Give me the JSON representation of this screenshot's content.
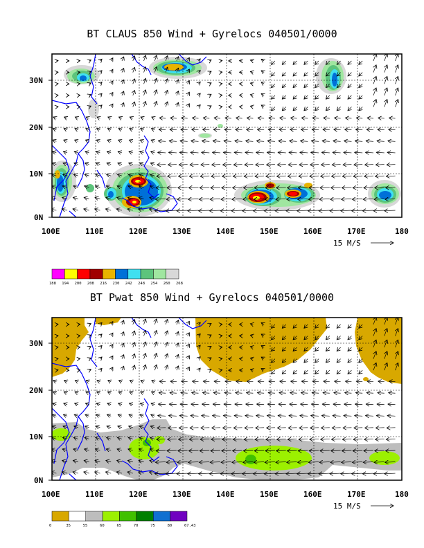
{
  "panel1": {
    "title": "BT CLAUS 850 Wind + Gyrelocs 040501/0000",
    "lat_labels": [
      "30N",
      "20N",
      "10N",
      "0N"
    ],
    "lon_labels": [
      "100E",
      "110E",
      "120E",
      "130E",
      "140E",
      "150E",
      "160E",
      "170E",
      "180"
    ],
    "scale_label": "15 M/S",
    "colorbar_colors": [
      "#ff00ff",
      "#ffff00",
      "#ff0000",
      "#a00000",
      "#e8b400",
      "#0070d8",
      "#40e0f0",
      "#5cc47c",
      "#a0e6a0",
      "#d8d8d8"
    ],
    "colorbar_labels": [
      "188",
      "194",
      "200",
      "208",
      "216",
      "230",
      "242",
      "248",
      "254",
      "260",
      "268"
    ]
  },
  "panel2": {
    "title": "BT Pwat 850 Wind + Gyrelocs 040501/0000",
    "lat_labels": [
      "30N",
      "20N",
      "10N",
      "0N"
    ],
    "lon_labels": [
      "100E",
      "110E",
      "120E",
      "130E",
      "140E",
      "150E",
      "160E",
      "170E",
      "180"
    ],
    "scale_label": "15 M/S",
    "colorbar_colors": [
      "#d8a800",
      "#ffffff",
      "#bdbdbd",
      "#9cf000",
      "#40c000",
      "#008000",
      "#1070d0",
      "#7000c0"
    ],
    "colorbar_labels": [
      "0",
      "35",
      "55",
      "60",
      "65",
      "70",
      "75",
      "80",
      "67.43"
    ]
  },
  "colors": {
    "coast": "#0000ff",
    "axis": "#000000"
  }
}
